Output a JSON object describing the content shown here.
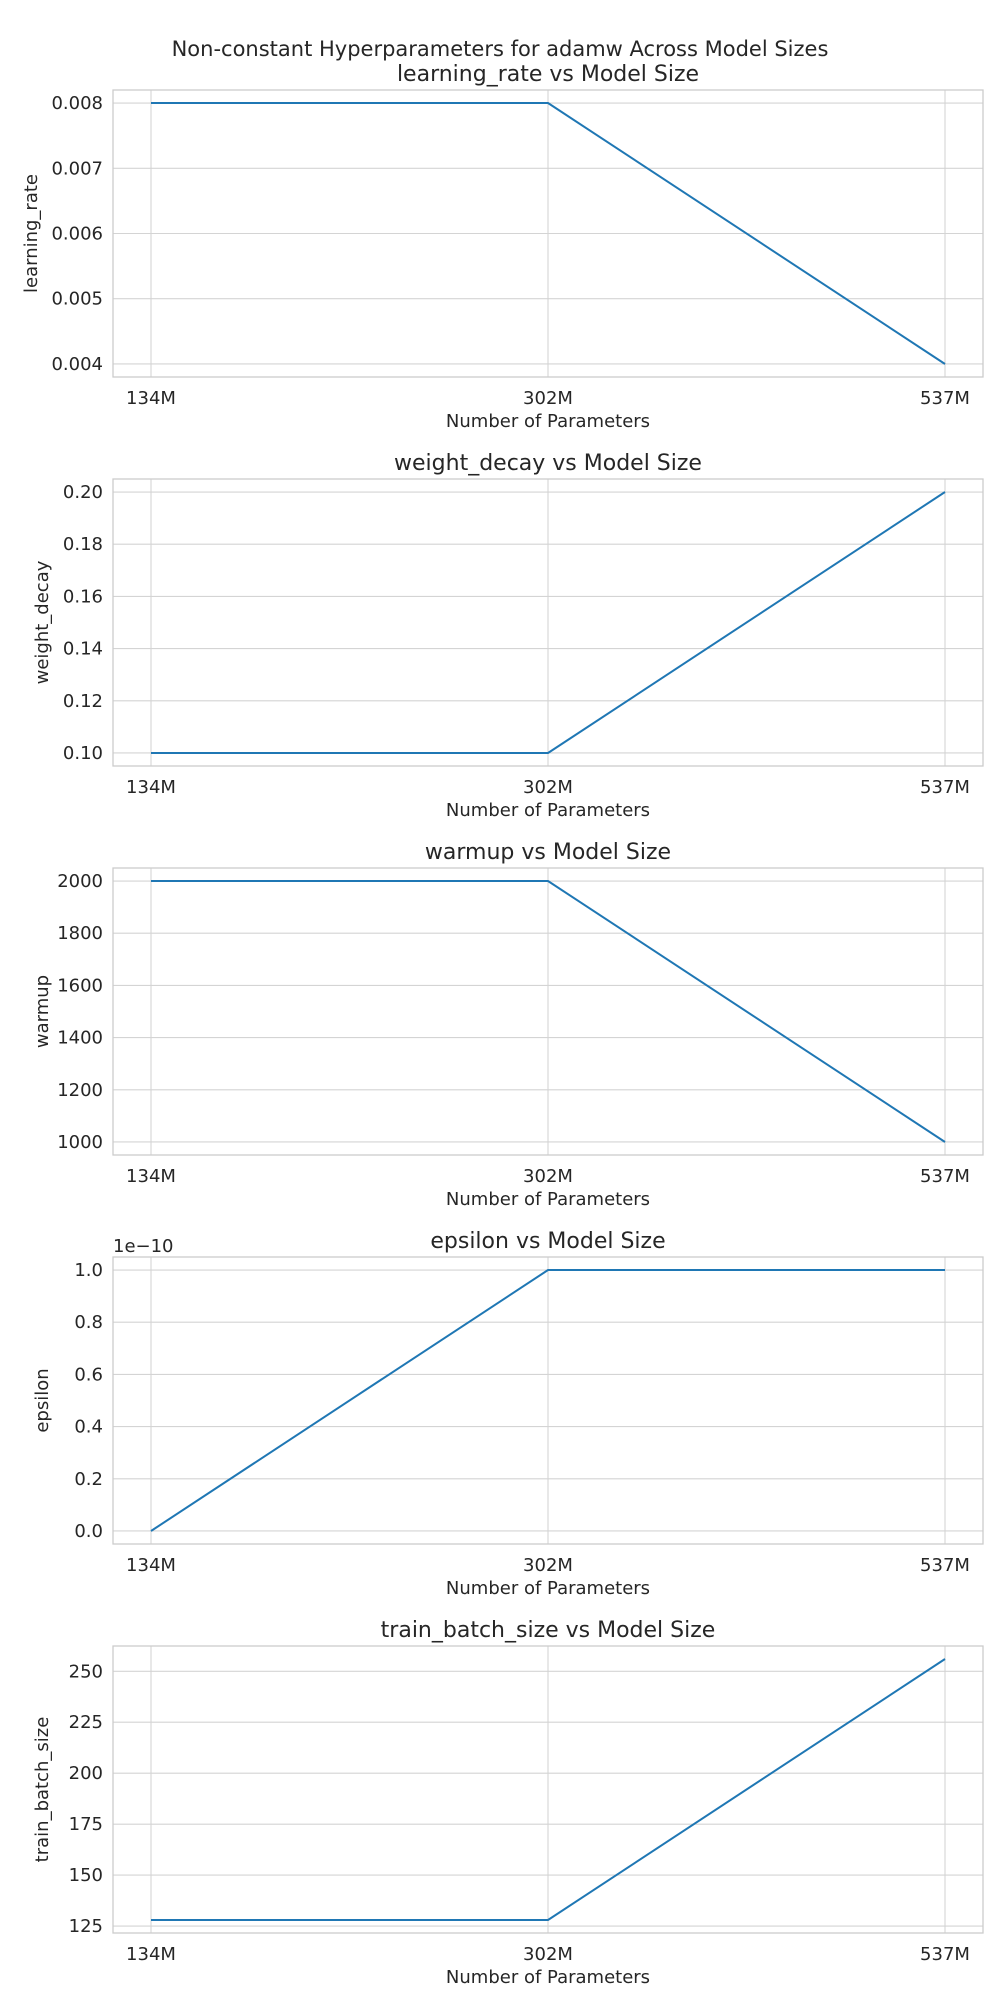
{
  "figure": {
    "suptitle": "Non-constant Hyperparameters for adamw Across Model Sizes",
    "line_color": "#1f77b4",
    "grid": true
  },
  "chart_data": [
    {
      "type": "line",
      "title": "learning_rate vs Model Size",
      "xlabel": "Number of Parameters",
      "ylabel": "learning_rate",
      "categories": [
        "134M",
        "302M",
        "537M"
      ],
      "values": [
        0.008,
        0.008,
        0.004
      ],
      "ylim": [
        0.0038,
        0.0082
      ],
      "yticks": [
        0.004,
        0.005,
        0.006,
        0.007,
        0.008
      ],
      "ytick_labels": [
        "0.004",
        "0.005",
        "0.006",
        "0.007",
        "0.008"
      ],
      "offset_label": ""
    },
    {
      "type": "line",
      "title": "weight_decay vs Model Size",
      "xlabel": "Number of Parameters",
      "ylabel": "weight_decay",
      "categories": [
        "134M",
        "302M",
        "537M"
      ],
      "values": [
        0.1,
        0.1,
        0.2
      ],
      "ylim": [
        0.095,
        0.205
      ],
      "yticks": [
        0.1,
        0.12,
        0.14,
        0.16,
        0.18,
        0.2
      ],
      "ytick_labels": [
        "0.10",
        "0.12",
        "0.14",
        "0.16",
        "0.18",
        "0.20"
      ],
      "offset_label": ""
    },
    {
      "type": "line",
      "title": "warmup vs Model Size",
      "xlabel": "Number of Parameters",
      "ylabel": "warmup",
      "categories": [
        "134M",
        "302M",
        "537M"
      ],
      "values": [
        2000,
        2000,
        1000
      ],
      "ylim": [
        950,
        2050
      ],
      "yticks": [
        1000,
        1200,
        1400,
        1600,
        1800,
        2000
      ],
      "ytick_labels": [
        "1000",
        "1200",
        "1400",
        "1600",
        "1800",
        "2000"
      ],
      "offset_label": ""
    },
    {
      "type": "line",
      "title": "epsilon vs Model Size",
      "xlabel": "Number of Parameters",
      "ylabel": "epsilon",
      "categories": [
        "134M",
        "302M",
        "537M"
      ],
      "values": [
        0,
        1e-10,
        1e-10
      ],
      "ylim": [
        -5e-12,
        1.05e-10
      ],
      "yticks": [
        0,
        2e-11,
        4e-11,
        6e-11,
        8e-11,
        1e-10
      ],
      "ytick_labels": [
        "0.0",
        "0.2",
        "0.4",
        "0.6",
        "0.8",
        "1.0"
      ],
      "offset_label": "1e−10"
    },
    {
      "type": "line",
      "title": "train_batch_size vs Model Size",
      "xlabel": "Number of Parameters",
      "ylabel": "train_batch_size",
      "categories": [
        "134M",
        "302M",
        "537M"
      ],
      "values": [
        128,
        128,
        256
      ],
      "ylim": [
        121.6,
        262.4
      ],
      "yticks": [
        125,
        150,
        175,
        200,
        225,
        250
      ],
      "ytick_labels": [
        "125",
        "150",
        "175",
        "200",
        "225",
        "250"
      ],
      "offset_label": ""
    }
  ]
}
